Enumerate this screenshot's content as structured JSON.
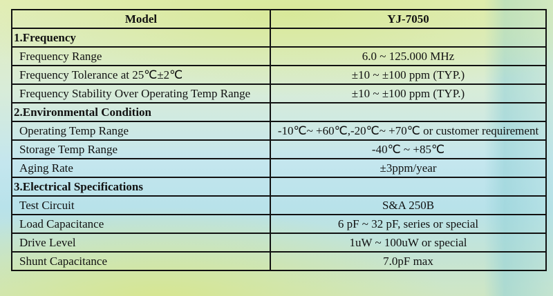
{
  "header": {
    "label": "Model",
    "value": "YJ-7050"
  },
  "sections": [
    {
      "title": "1.Frequency",
      "rows": [
        {
          "label": "Frequency Range",
          "value": "6.0 ~ 125.000 MHz"
        },
        {
          "label": "Frequency Tolerance at 25℃±2℃",
          "value": "±10 ~  ±100 ppm (TYP.)"
        },
        {
          "label": "Frequency Stability Over Operating Temp Range",
          "value": "±10 ~  ±100 ppm (TYP.)"
        }
      ]
    },
    {
      "title": "2.Environmental Condition",
      "rows": [
        {
          "label": "Operating Temp Range",
          "value": "-10℃~ +60℃,-20℃~ +70℃ or customer requirement"
        },
        {
          "label": "Storage Temp Range",
          "value": "-40℃ ~ +85℃"
        },
        {
          "label": "Aging Rate",
          "value": "±3ppm/year"
        }
      ]
    },
    {
      "title": "3.Electrical Specifications",
      "rows": [
        {
          "label": "Test Circuit",
          "value": "S&A 250B"
        },
        {
          "label": "Load Capacitance",
          "value": "6 pF ~ 32 pF, series or special"
        },
        {
          "label": "Drive Level",
          "value": "1uW ~ 100uW or special"
        },
        {
          "label": "Shunt Capacitance",
          "value": "7.0pF max"
        }
      ]
    }
  ]
}
